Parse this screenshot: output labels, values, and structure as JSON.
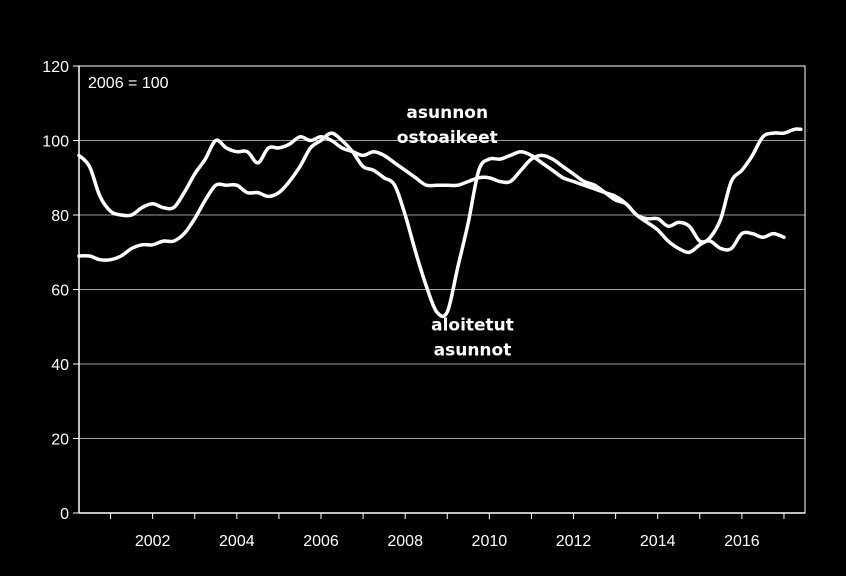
{
  "chart_data": {
    "type": "line",
    "annotation": "2006 = 100",
    "xlim": [
      2000.25,
      2017.5
    ],
    "ylim": [
      0,
      120
    ],
    "yticks": [
      0,
      20,
      40,
      60,
      80,
      100,
      120
    ],
    "xtick_values": [
      2002,
      2004,
      2006,
      2008,
      2010,
      2012,
      2014,
      2016
    ],
    "xtick_labels": [
      "2002",
      "2004",
      "2006",
      "2008",
      "2010",
      "2012",
      "2014",
      "2016"
    ],
    "grid": "horizontal",
    "colors": {
      "background": "#000000",
      "line": "#ffffff",
      "grid": "#9a9a9a",
      "axis": "#ffffff"
    },
    "series": [
      {
        "name_lines": [
          "asunnon",
          "ostoaikeet"
        ],
        "label_anchor": [
          2009.0,
          106
        ],
        "x": [
          2000.25,
          2000.5,
          2000.75,
          2001.0,
          2001.25,
          2001.5,
          2001.75,
          2002.0,
          2002.25,
          2002.5,
          2002.75,
          2003.0,
          2003.25,
          2003.5,
          2003.75,
          2004.0,
          2004.25,
          2004.5,
          2004.75,
          2005.0,
          2005.25,
          2005.5,
          2005.75,
          2006.0,
          2006.25,
          2006.5,
          2006.75,
          2007.0,
          2007.25,
          2007.5,
          2007.75,
          2008.0,
          2008.25,
          2008.5,
          2008.75,
          2009.0,
          2009.25,
          2009.5,
          2009.75,
          2010.0,
          2010.25,
          2010.5,
          2010.75,
          2011.0,
          2011.25,
          2011.5,
          2011.75,
          2012.0,
          2012.25,
          2012.5,
          2012.75,
          2013.0,
          2013.25,
          2013.5,
          2013.75,
          2014.0,
          2014.25,
          2014.5,
          2014.75,
          2015.0,
          2015.25,
          2015.5,
          2015.75,
          2016.0,
          2016.25,
          2016.5,
          2016.75,
          2017.0
        ],
        "y": [
          96,
          93,
          85,
          81,
          80,
          80,
          82,
          83,
          82,
          82,
          86,
          91,
          95,
          100,
          98,
          97,
          97,
          94,
          98,
          98,
          99,
          101,
          100,
          101,
          100,
          98,
          97,
          96,
          97,
          96,
          94,
          92,
          90,
          88,
          88,
          88,
          88,
          89,
          90,
          90,
          89,
          89,
          92,
          95,
          96,
          95,
          93,
          91,
          89,
          88,
          86,
          84,
          83,
          80,
          79,
          79,
          77,
          78,
          77,
          73,
          73,
          71,
          71,
          75,
          75,
          74,
          75,
          74
        ]
      },
      {
        "name_lines": [
          "aloitetut",
          "asunnot"
        ],
        "label_anchor": [
          2009.6,
          49
        ],
        "x": [
          2000.25,
          2000.5,
          2000.75,
          2001.0,
          2001.25,
          2001.5,
          2001.75,
          2002.0,
          2002.25,
          2002.5,
          2002.75,
          2003.0,
          2003.25,
          2003.5,
          2003.75,
          2004.0,
          2004.25,
          2004.5,
          2004.75,
          2005.0,
          2005.25,
          2005.5,
          2005.75,
          2006.0,
          2006.25,
          2006.5,
          2006.75,
          2007.0,
          2007.25,
          2007.5,
          2007.75,
          2008.0,
          2008.25,
          2008.5,
          2008.75,
          2009.0,
          2009.25,
          2009.5,
          2009.75,
          2010.0,
          2010.25,
          2010.5,
          2010.75,
          2011.0,
          2011.25,
          2011.5,
          2011.75,
          2012.0,
          2012.25,
          2012.5,
          2012.75,
          2013.0,
          2013.25,
          2013.5,
          2013.75,
          2014.0,
          2014.25,
          2014.5,
          2014.75,
          2015.0,
          2015.25,
          2015.5,
          2015.75,
          2016.0,
          2016.25,
          2016.5,
          2016.75,
          2017.0,
          2017.25,
          2017.4
        ],
        "y": [
          69,
          69,
          68,
          68,
          69,
          71,
          72,
          72,
          73,
          73,
          75,
          79,
          84,
          88,
          88,
          88,
          86,
          86,
          85,
          86,
          89,
          93,
          98,
          100,
          102,
          100,
          97,
          93,
          92,
          90,
          88,
          80,
          70,
          61,
          54,
          54,
          66,
          78,
          92,
          95,
          95,
          96,
          97,
          96,
          94,
          92,
          90,
          89,
          88,
          87,
          86,
          85,
          83,
          80,
          78,
          76,
          73,
          71,
          70,
          72,
          74,
          79,
          89,
          92,
          96,
          101,
          102,
          102,
          103,
          103
        ]
      }
    ]
  }
}
